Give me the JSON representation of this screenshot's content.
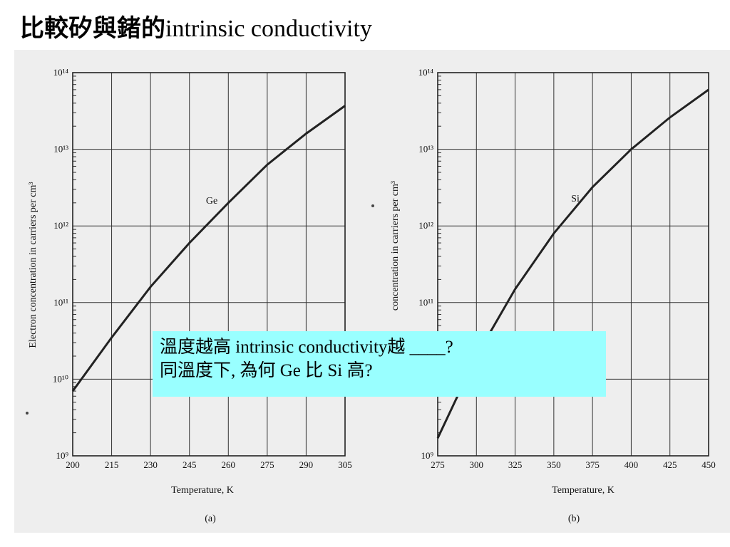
{
  "title": {
    "cjk": "比較矽與鍺的",
    "latin": "intrinsic conductivity"
  },
  "question": {
    "line1": "溫度越高 intrinsic conductivity越 ____?",
    "line2": "同溫度下, 為何 Ge 比 Si 高?"
  },
  "chart_data": [
    {
      "type": "line",
      "panel_label": "(a)",
      "curve_label": "Ge",
      "xlabel": "Temperature,  K",
      "ylabel": "Electron concentration in carriers per cm³",
      "xlim": [
        200,
        305
      ],
      "x_ticks": [
        200,
        215,
        230,
        245,
        260,
        275,
        290,
        305
      ],
      "y_scale": "log",
      "ylim": [
        1000000000.0,
        100000000000000.0
      ],
      "y_ticks": [
        "10⁹",
        "10¹⁰",
        "10¹¹",
        "10¹²",
        "10¹³",
        "10¹⁴"
      ],
      "grid": true,
      "series": [
        {
          "x": [
            200,
            215,
            230,
            245,
            260,
            275,
            290,
            305
          ],
          "y": [
            7000000000.0,
            35000000000.0,
            160000000000.0,
            600000000000.0,
            2000000000000.0,
            6300000000000.0,
            16000000000000.0,
            37000000000000.0
          ]
        }
      ]
    },
    {
      "type": "line",
      "panel_label": "(b)",
      "curve_label": "Si",
      "xlabel": "Temperature,  K",
      "ylabel": "concentration in carriers per cm³",
      "xlim": [
        275,
        450
      ],
      "x_ticks": [
        275,
        300,
        325,
        350,
        375,
        400,
        425,
        450
      ],
      "y_scale": "log",
      "ylim": [
        1000000000.0,
        100000000000000.0
      ],
      "y_ticks": [
        "10⁹",
        "10¹⁰",
        "10¹¹",
        "10¹²",
        "10¹³",
        "10¹⁴"
      ],
      "grid": true,
      "series": [
        {
          "x": [
            275,
            300,
            325,
            350,
            375,
            400,
            425,
            450
          ],
          "y": [
            1700000000.0,
            20000000000.0,
            150000000000.0,
            800000000000.0,
            3200000000000.0,
            10000000000000.0,
            26000000000000.0,
            60000000000000.0
          ]
        }
      ]
    }
  ]
}
